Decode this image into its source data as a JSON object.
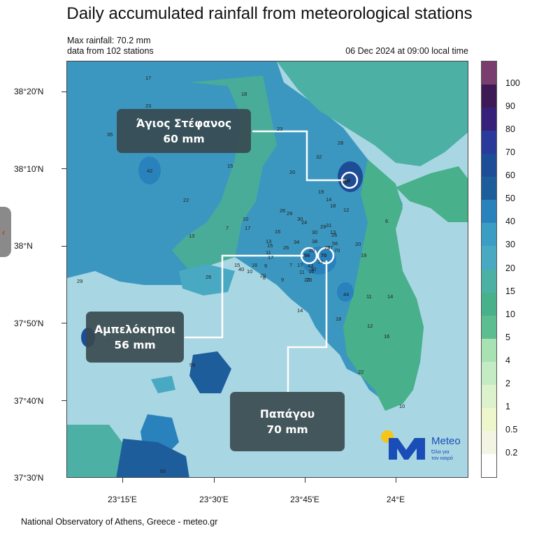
{
  "title": "Daily accumulated rainfall from meteorological stations",
  "info": {
    "max_rainfall": "Max rainfall: 70.2 mm",
    "stations": "data from 102 stations",
    "datetime": "06 Dec 2024 at 09:00 local time"
  },
  "axes": {
    "lat_labels": [
      "38°20'N",
      "38°10'N",
      "38°N",
      "37°50'N",
      "37°40'N",
      "37°30'N"
    ],
    "lon_labels": [
      "23°15'E",
      "23°30'E",
      "23°45'E",
      "24°E"
    ]
  },
  "legend": {
    "labels": [
      "100",
      "90",
      "80",
      "70",
      "60",
      "50",
      "40",
      "30",
      "20",
      "15",
      "10",
      "5",
      "4",
      "2",
      "1",
      "0.5",
      "0.2"
    ],
    "colors": [
      "#7a3e6e",
      "#3d1a55",
      "#35217a",
      "#2a3a9a",
      "#1d4d96",
      "#1e5d9c",
      "#2a82bd",
      "#3a9dc4",
      "#4aa9c2",
      "#4cb0a4",
      "#48b08a",
      "#5cbd90",
      "#a8e1b2",
      "#c4ecc4",
      "#dcf2cc",
      "#eef6cc",
      "#f4f4e4",
      "#ffffff"
    ]
  },
  "callouts": [
    {
      "name": "Άγιος Στέφανος",
      "value": "60 mm"
    },
    {
      "name": "Αμπελόκηποι",
      "value": "56 mm"
    },
    {
      "name": "Παπάγου",
      "value": "70 mm"
    }
  ],
  "highlight_values": [
    "60",
    "56",
    "70"
  ],
  "stations": [
    "17",
    "18",
    "23",
    "35",
    "23",
    "28",
    "15",
    "42",
    "32",
    "20",
    "60",
    "22",
    "19",
    "14",
    "18",
    "26",
    "29",
    "30",
    "13",
    "7",
    "10",
    "17",
    "34",
    "16",
    "38",
    "13",
    "31",
    "13",
    "29",
    "6",
    "12",
    "20",
    "26",
    "15",
    "11",
    "17",
    "56",
    "70",
    "26",
    "24",
    "30",
    "20",
    "25",
    "23",
    "16",
    "14",
    "19",
    "26",
    "10",
    "29",
    "9",
    "40",
    "43",
    "8",
    "20",
    "9",
    "11",
    "17",
    "7",
    "15",
    "16",
    "12",
    "27",
    "23",
    "30",
    "44",
    "14",
    "11",
    "18",
    "12",
    "16",
    "59",
    "22",
    "65",
    "10"
  ],
  "footer": "National Observatory of Athens, Greece - meteo.gr",
  "logo": {
    "text": "Meteo",
    "sub1": "Όλα για",
    "sub2": "τον καιρό"
  },
  "side_tab": "‹"
}
